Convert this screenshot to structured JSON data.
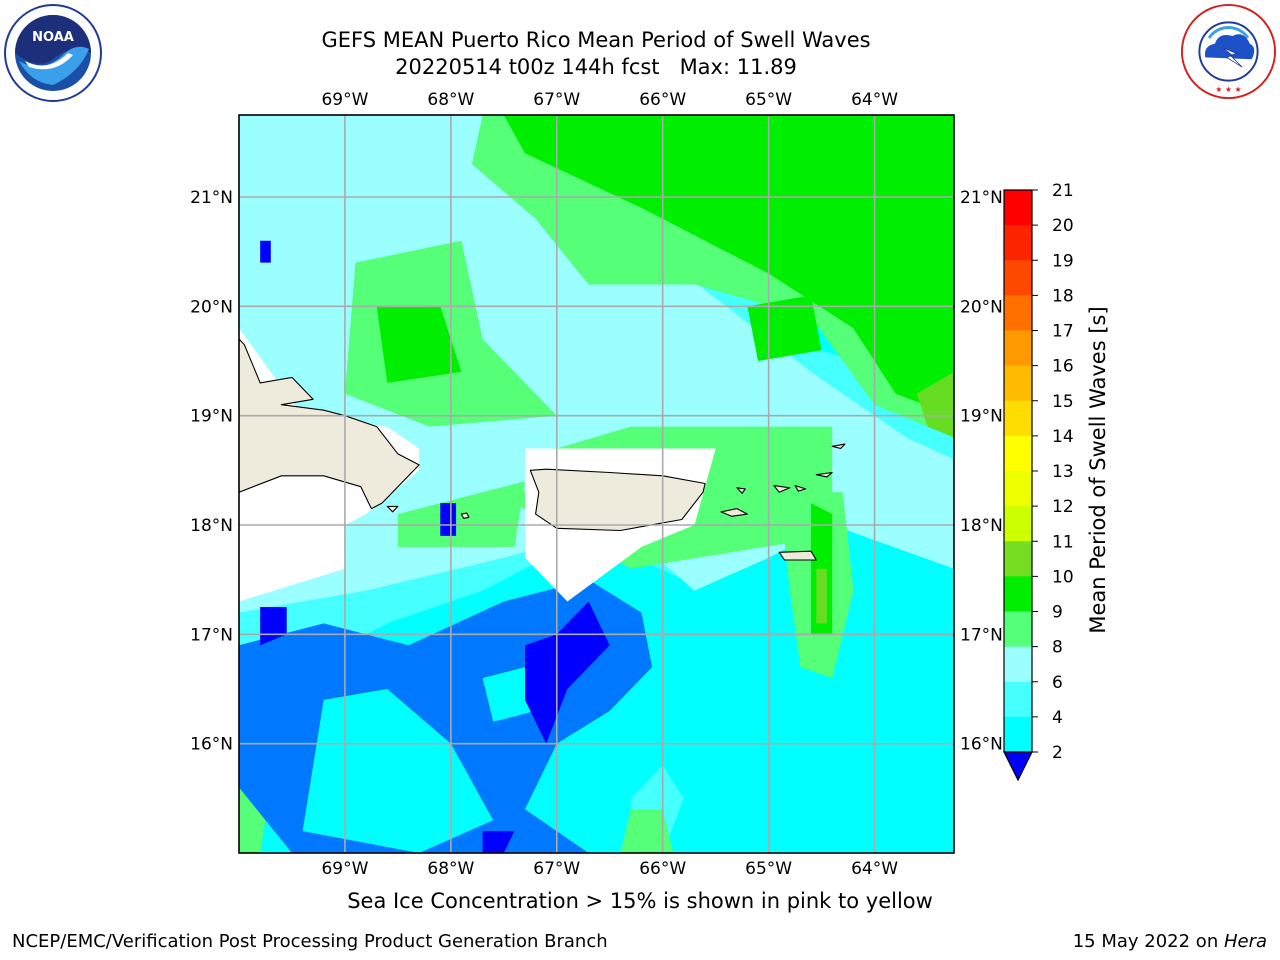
{
  "title": {
    "line1": "GEFS MEAN Puerto Rico Mean Period of Swell Waves",
    "line2": "20220514 t00z 144h fcst   Max: 11.89"
  },
  "caption": "Sea Ice Concentration > 15% is shown in pink to yellow",
  "footer": {
    "left": "NCEP/EMC/Verification Post Processing Product Generation Branch",
    "right_date": "15 May 2022 on ",
    "right_host": "Hera"
  },
  "logos": {
    "noaa_text": "NOAA",
    "nws_text": "NATIONAL WEATHER SERVICE"
  },
  "map": {
    "lon_ticks": [
      "69°W",
      "68°W",
      "67°W",
      "66°W",
      "65°W",
      "64°W"
    ],
    "lat_ticks": [
      "21°N",
      "20°N",
      "19°N",
      "18°N",
      "17°N",
      "16°N"
    ],
    "lon_values": [
      -69,
      -68,
      -67,
      -66,
      -65,
      -64
    ],
    "lat_values": [
      21,
      20,
      19,
      18,
      17,
      16
    ],
    "lon_range": [
      -70,
      -63.25
    ],
    "lat_range": [
      15,
      21.75
    ],
    "gridlines": true,
    "land_color": "#eeebdc",
    "no_data_color": "#ffffff",
    "field_colors": {
      "2-4": "#0000ff",
      "4-6": "#0078ff",
      "6-8": "#00ffff",
      "8-9": "#46ffff",
      "9-10": "#9bffff",
      "10-11": "#55ff77",
      "11-12": "#00ee00",
      "12-13": "#66dd22"
    }
  },
  "colorbar": {
    "label": "Mean Period of Swell Waves [s]",
    "ticks": [
      "21",
      "20",
      "19",
      "18",
      "17",
      "16",
      "15",
      "14",
      "13",
      "12",
      "11",
      "10",
      "9",
      "8",
      "6",
      "4",
      "2"
    ],
    "colors": [
      "#ff0000",
      "#ff2400",
      "#ff4800",
      "#ff7000",
      "#ff9900",
      "#ffbb00",
      "#ffdd00",
      "#ffff00",
      "#eeff00",
      "#ccff00",
      "#77dd22",
      "#00ee00",
      "#55ff77",
      "#9bffff",
      "#46ffff",
      "#00ffff",
      "#0078ff",
      "#0000ff"
    ],
    "extend": "min"
  }
}
